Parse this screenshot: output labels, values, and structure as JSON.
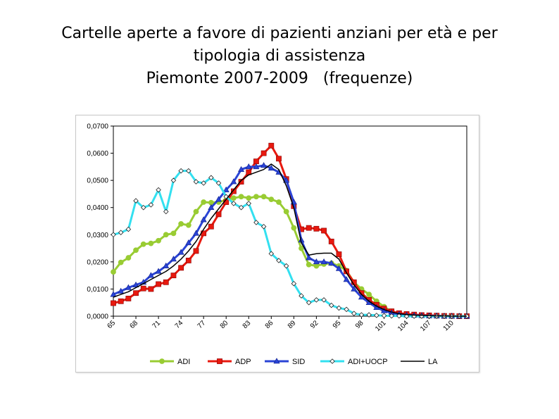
{
  "slide": {
    "title_line1": "Cartelle aperte a favore di pazienti anziani per età e per",
    "title_line2": "tipologia di assistenza",
    "title_line3": "Piemonte 2007-2009   (frequenze)"
  },
  "chart_data": {
    "type": "line",
    "title": "",
    "xlabel": "",
    "ylabel": "",
    "x_start": 65,
    "x_end": 112,
    "x_tick_labels": [
      "65",
      "68",
      "71",
      "74",
      "77",
      "80",
      "83",
      "86",
      "89",
      "92",
      "95",
      "98",
      "101",
      "104",
      "107",
      "110"
    ],
    "ylim": [
      0,
      0.07
    ],
    "y_tick_labels": [
      "0,0000",
      "0,0100",
      "0,0200",
      "0,0300",
      "0,0400",
      "0,0500",
      "0,0600",
      "0,0700"
    ],
    "grid": false,
    "legend_position": "bottom",
    "series": [
      {
        "name": "ADI",
        "color": "#99cc33",
        "marker": "circle",
        "values": [
          0.0163,
          0.0198,
          0.0215,
          0.0243,
          0.0265,
          0.0268,
          0.0278,
          0.03,
          0.0305,
          0.034,
          0.0335,
          0.0385,
          0.042,
          0.0418,
          0.042,
          0.0428,
          0.0435,
          0.044,
          0.0435,
          0.044,
          0.044,
          0.043,
          0.042,
          0.0385,
          0.0325,
          0.025,
          0.019,
          0.0185,
          0.0192,
          0.0195,
          0.0185,
          0.0168,
          0.0125,
          0.01,
          0.008,
          0.0055,
          0.0035,
          0.0018,
          0.001,
          0.0005,
          0.0004,
          0.0002,
          0.0001,
          0.0001,
          0.0,
          0.0,
          0.0,
          0.0
        ]
      },
      {
        "name": "ADP",
        "color": "#e8190f",
        "marker": "square",
        "values": [
          0.0048,
          0.0055,
          0.0065,
          0.0085,
          0.0102,
          0.01,
          0.0118,
          0.0125,
          0.015,
          0.0178,
          0.0205,
          0.024,
          0.0305,
          0.033,
          0.0375,
          0.042,
          0.046,
          0.0495,
          0.053,
          0.057,
          0.06,
          0.0628,
          0.058,
          0.0505,
          0.0405,
          0.032,
          0.0325,
          0.0322,
          0.0315,
          0.0275,
          0.0228,
          0.0165,
          0.0125,
          0.0085,
          0.006,
          0.0042,
          0.0028,
          0.0018,
          0.0011,
          0.0008,
          0.0006,
          0.0004,
          0.0003,
          0.0002,
          0.0001,
          0.0001,
          0.0,
          0.0
        ]
      },
      {
        "name": "SID",
        "color": "#2a44d6",
        "marker": "triangle",
        "values": [
          0.008,
          0.0092,
          0.0105,
          0.0115,
          0.0125,
          0.015,
          0.0165,
          0.0185,
          0.021,
          0.0235,
          0.027,
          0.0305,
          0.0355,
          0.04,
          0.043,
          0.0465,
          0.0495,
          0.054,
          0.055,
          0.055,
          0.0555,
          0.0545,
          0.053,
          0.05,
          0.042,
          0.028,
          0.0215,
          0.02,
          0.02,
          0.0195,
          0.0175,
          0.0135,
          0.01,
          0.007,
          0.005,
          0.0032,
          0.002,
          0.0012,
          0.0007,
          0.0004,
          0.0003,
          0.0002,
          0.0001,
          0.0001,
          0.0,
          0.0,
          0.0,
          0.0
        ]
      },
      {
        "name": "ADI+UOCP",
        "color": "#33e0f0",
        "marker": "diamond",
        "values": [
          0.03,
          0.0308,
          0.032,
          0.0425,
          0.04,
          0.041,
          0.0465,
          0.0385,
          0.05,
          0.0535,
          0.0535,
          0.0495,
          0.049,
          0.051,
          0.049,
          0.044,
          0.0415,
          0.04,
          0.0415,
          0.0345,
          0.033,
          0.023,
          0.0205,
          0.0185,
          0.012,
          0.0075,
          0.005,
          0.006,
          0.006,
          0.004,
          0.003,
          0.0025,
          0.001,
          0.0005,
          0.0005,
          0.0003,
          0.0002,
          0.0001,
          0.0001,
          0.0,
          0.0,
          0.0,
          0.0,
          0.0,
          0.0,
          0.0,
          0.0,
          0.0
        ]
      },
      {
        "name": "LA",
        "color": "#000000",
        "marker": "none",
        "values": [
          0.007,
          0.008,
          0.009,
          0.0105,
          0.012,
          0.0135,
          0.015,
          0.0165,
          0.0185,
          0.021,
          0.024,
          0.0275,
          0.032,
          0.036,
          0.0395,
          0.043,
          0.0465,
          0.05,
          0.052,
          0.053,
          0.054,
          0.056,
          0.054,
          0.048,
          0.04,
          0.027,
          0.0225,
          0.023,
          0.0232,
          0.0232,
          0.021,
          0.016,
          0.0115,
          0.008,
          0.0055,
          0.0037,
          0.0024,
          0.0015,
          0.0009,
          0.0006,
          0.0004,
          0.0003,
          0.0002,
          0.0001,
          0.0001,
          0.0,
          0.0,
          0.0
        ]
      }
    ]
  }
}
